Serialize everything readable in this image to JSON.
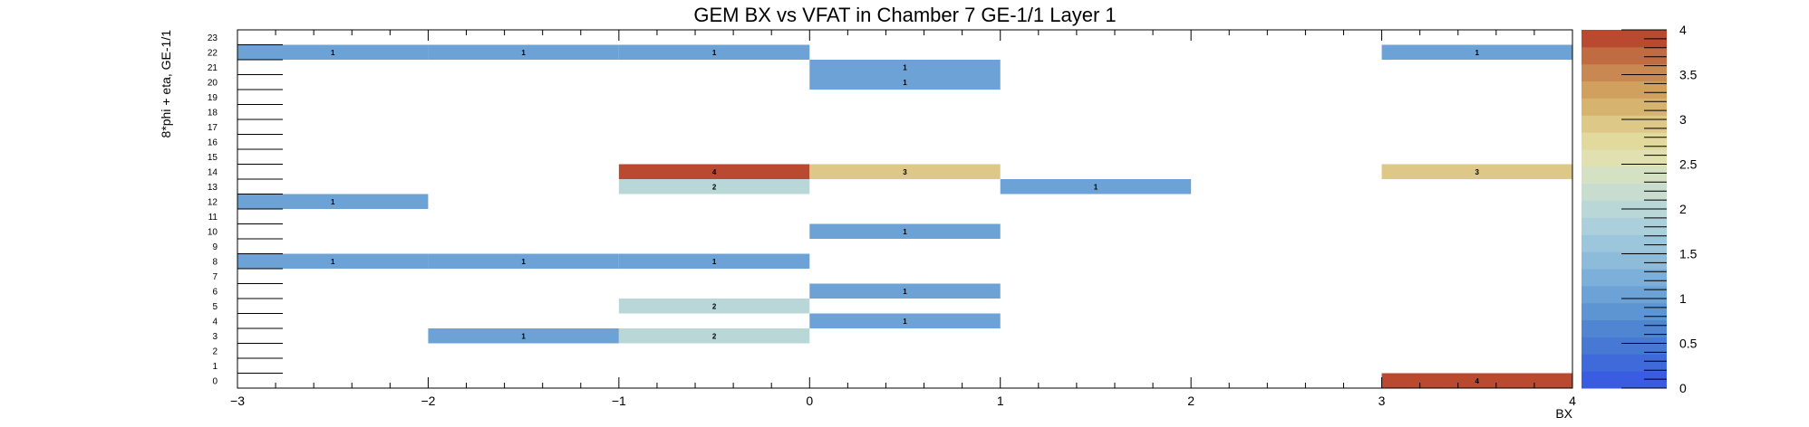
{
  "chart_data": {
    "type": "heatmap",
    "title": "GEM BX vs VFAT in Chamber 7 GE-1/1 Layer 1",
    "xlabel": "BX",
    "ylabel": "8*phi + eta, GE-1/1",
    "xlim": [
      -3,
      4
    ],
    "ylim": [
      0,
      24
    ],
    "x_ticks": [
      "−3",
      "−2",
      "−1",
      "0",
      "1",
      "2",
      "3",
      "4"
    ],
    "y_ticks": [
      "0",
      "1",
      "2",
      "3",
      "4",
      "5",
      "6",
      "7",
      "8",
      "9",
      "10",
      "11",
      "12",
      "13",
      "14",
      "15",
      "16",
      "17",
      "18",
      "19",
      "20",
      "21",
      "22",
      "23"
    ],
    "z_range": [
      0,
      4
    ],
    "z_ticks": [
      "0",
      "0.5",
      "1",
      "1.5",
      "2",
      "2.5",
      "3",
      "3.5",
      "4"
    ],
    "palette_colors": [
      "#3a5ce0",
      "#3f6ad9",
      "#4778d4",
      "#5086d1",
      "#5c95d2",
      "#6ca2d6",
      "#7cb0da",
      "#8dbcdb",
      "#9cc6dc",
      "#abcfdb",
      "#bad7d8",
      "#c8ddd0",
      "#d5e1c3",
      "#e0e0b1",
      "#e2d99c",
      "#ddc888",
      "#d6b46f",
      "#d2a05e",
      "#c98751",
      "#c06b42",
      "#b94a30"
    ],
    "cells": [
      {
        "x": -2.5,
        "y": 22,
        "value": 1,
        "label": "1"
      },
      {
        "x": -1.5,
        "y": 22,
        "value": 1,
        "label": "1"
      },
      {
        "x": -0.5,
        "y": 22,
        "value": 1,
        "label": "1"
      },
      {
        "x": 3.5,
        "y": 22,
        "value": 1,
        "label": "1"
      },
      {
        "x": 0.5,
        "y": 21,
        "value": 1,
        "label": "1"
      },
      {
        "x": 0.5,
        "y": 20,
        "value": 1,
        "label": "1"
      },
      {
        "x": -0.5,
        "y": 14,
        "value": 4,
        "label": "4"
      },
      {
        "x": 0.5,
        "y": 14,
        "value": 3,
        "label": "3"
      },
      {
        "x": 3.5,
        "y": 14,
        "value": 3,
        "label": "3"
      },
      {
        "x": -0.5,
        "y": 13,
        "value": 2,
        "label": "2"
      },
      {
        "x": 1.5,
        "y": 13,
        "value": 1,
        "label": "1"
      },
      {
        "x": -2.5,
        "y": 12,
        "value": 1,
        "label": "1"
      },
      {
        "x": 0.5,
        "y": 10,
        "value": 1,
        "label": "1"
      },
      {
        "x": -2.5,
        "y": 8,
        "value": 1,
        "label": "1"
      },
      {
        "x": -1.5,
        "y": 8,
        "value": 1,
        "label": "1"
      },
      {
        "x": -0.5,
        "y": 8,
        "value": 1,
        "label": "1"
      },
      {
        "x": 0.5,
        "y": 6,
        "value": 1,
        "label": "1"
      },
      {
        "x": -0.5,
        "y": 5,
        "value": 2,
        "label": "2"
      },
      {
        "x": 0.5,
        "y": 4,
        "value": 1,
        "label": "1"
      },
      {
        "x": -1.5,
        "y": 3,
        "value": 1,
        "label": "1"
      },
      {
        "x": -0.5,
        "y": 3,
        "value": 2,
        "label": "2"
      },
      {
        "x": 3.5,
        "y": 0,
        "value": 4,
        "label": "4"
      }
    ],
    "grid": false,
    "legend": "color-palette-right"
  }
}
